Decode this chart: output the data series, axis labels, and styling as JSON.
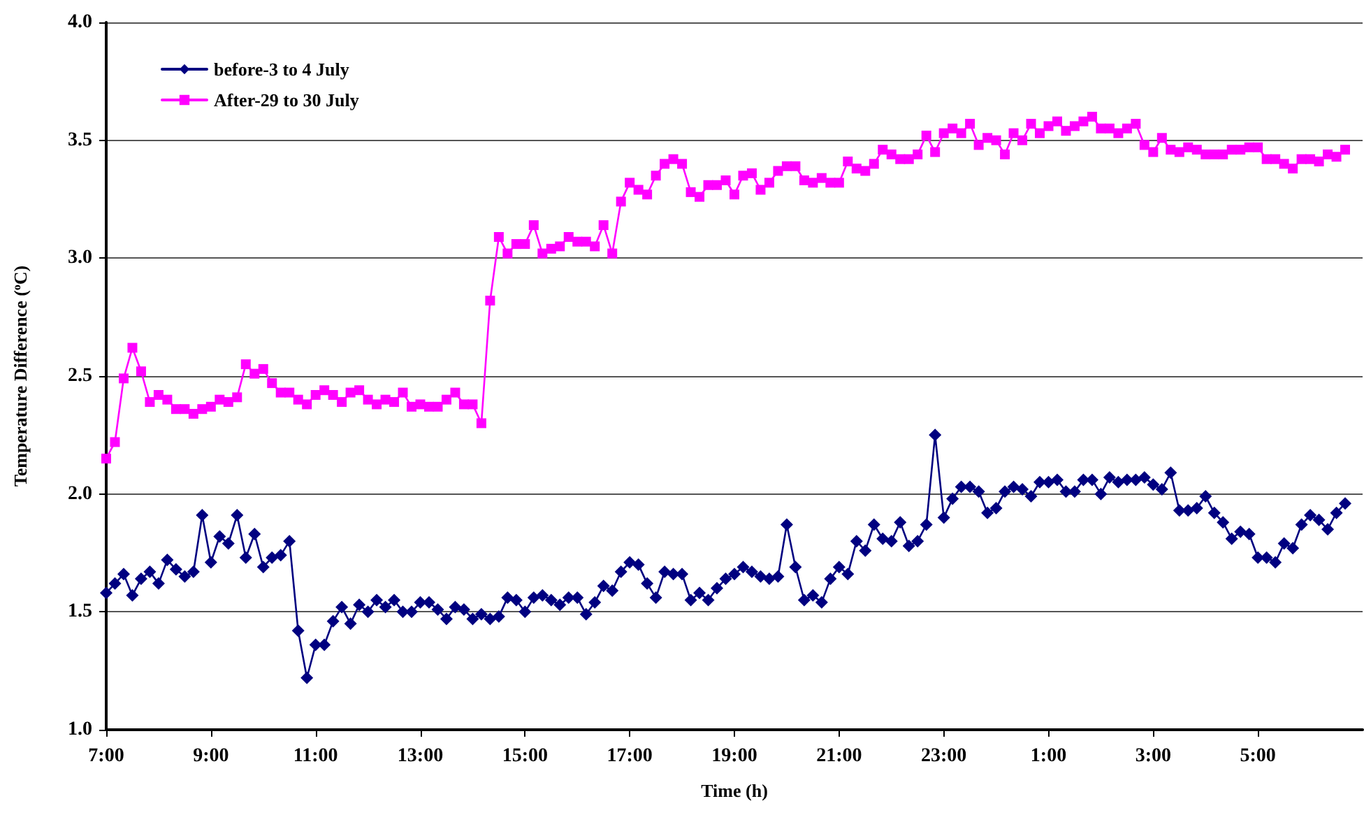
{
  "chart_data": {
    "type": "line",
    "xlabel": "Time (h)",
    "ylabel": "Temperature Difference ($^{o}$C)",
    "x": [
      "--07-03T07:00",
      "--07-03T07:10",
      "--07-03T07:20",
      "--07-03T07:30",
      "--07-03T07:40",
      "--07-03T07:50",
      "--07-03T08:00",
      "--07-03T08:10",
      "--07-03T08:20",
      "--07-03T08:30",
      "--07-03T08:40",
      "--07-03T08:50",
      "--07-03T09:00",
      "--07-03T09:10",
      "--07-03T09:20",
      "--07-03T09:30",
      "--07-03T09:40",
      "--07-03T09:50",
      "--07-03T10:00",
      "--07-03T10:10",
      "--07-03T10:20",
      "--07-03T10:30",
      "--07-03T10:40",
      "--07-03T10:50",
      "--07-03T11:00",
      "--07-03T11:10",
      "--07-03T11:20",
      "--07-03T11:30",
      "--07-03T11:40",
      "--07-03T11:50",
      "--07-03T12:00",
      "--07-03T12:10",
      "--07-03T12:20",
      "--07-03T12:30",
      "--07-03T12:40",
      "--07-03T12:50",
      "--07-03T13:00",
      "--07-03T13:10",
      "--07-03T13:20",
      "--07-03T13:30",
      "--07-03T13:40",
      "--07-03T13:50",
      "--07-03T14:00",
      "--07-03T14:10",
      "--07-03T14:20",
      "--07-03T14:30",
      "--07-03T14:40",
      "--07-03T14:50",
      "--07-03T15:00",
      "--07-03T15:10",
      "--07-03T15:20",
      "--07-03T15:30",
      "--07-03T15:40",
      "--07-03T15:50",
      "--07-03T16:00",
      "--07-03T16:10",
      "--07-03T16:20",
      "--07-03T16:30",
      "--07-03T16:40",
      "--07-03T16:50",
      "--07-03T17:00",
      "--07-03T17:10",
      "--07-03T17:20",
      "--07-03T17:30",
      "--07-03T17:40",
      "--07-03T17:50",
      "--07-03T18:00",
      "--07-03T18:10",
      "--07-03T18:20",
      "--07-03T18:30",
      "--07-03T18:40",
      "--07-03T18:50",
      "--07-03T19:00",
      "--07-03T19:10",
      "--07-03T19:20",
      "--07-03T19:30",
      "--07-03T19:40",
      "--07-03T19:50",
      "--07-03T20:00",
      "--07-03T20:10",
      "--07-03T20:20",
      "--07-03T20:30",
      "--07-03T20:40",
      "--07-03T20:50",
      "--07-03T21:00",
      "--07-03T21:10",
      "--07-03T21:20",
      "--07-03T21:30",
      "--07-03T21:40",
      "--07-03T21:50",
      "--07-03T22:00",
      "--07-03T22:10",
      "--07-03T22:20",
      "--07-03T22:30",
      "--07-03T22:40",
      "--07-03T22:50",
      "--07-03T23:00",
      "--07-03T23:10",
      "--07-03T23:20",
      "--07-03T23:30",
      "--07-03T23:40",
      "--07-03T23:50",
      "--07-04T00:00",
      "--07-04T00:10",
      "--07-04T00:20",
      "--07-04T00:30",
      "--07-04T00:40",
      "--07-04T00:50",
      "--07-04T01:00",
      "--07-04T01:10",
      "--07-04T01:20",
      "--07-04T01:30",
      "--07-04T01:40",
      "--07-04T01:50",
      "--07-04T02:00",
      "--07-04T02:10",
      "--07-04T02:20",
      "--07-04T02:30",
      "--07-04T02:40",
      "--07-04T02:50",
      "--07-04T03:00",
      "--07-04T03:10",
      "--07-04T03:20",
      "--07-04T03:30",
      "--07-04T03:40",
      "--07-04T03:50",
      "--07-04T04:00",
      "--07-04T04:10",
      "--07-04T04:20",
      "--07-04T04:30",
      "--07-04T04:40",
      "--07-04T04:50",
      "--07-04T05:00",
      "--07-04T05:10",
      "--07-04T05:20",
      "--07-04T05:30",
      "--07-04T05:40",
      "--07-04T05:50",
      "--07-04T06:00",
      "--07-04T06:10",
      "--07-04T06:20",
      "--07-04T06:30",
      "--07-04T06:40"
    ],
    "series": [
      {
        "name": "before-3 to 4 July",
        "color": "#000080",
        "marker": "diamond",
        "values": [
          1.58,
          1.62,
          1.66,
          1.57,
          1.64,
          1.67,
          1.62,
          1.72,
          1.68,
          1.65,
          1.67,
          1.91,
          1.71,
          1.82,
          1.79,
          1.91,
          1.73,
          1.83,
          1.69,
          1.73,
          1.74,
          1.8,
          1.42,
          1.22,
          1.36,
          1.36,
          1.46,
          1.52,
          1.45,
          1.53,
          1.5,
          1.55,
          1.52,
          1.55,
          1.5,
          1.5,
          1.54,
          1.54,
          1.51,
          1.47,
          1.52,
          1.51,
          1.47,
          1.49,
          1.47,
          1.48,
          1.56,
          1.55,
          1.5,
          1.56,
          1.57,
          1.55,
          1.53,
          1.56,
          1.56,
          1.49,
          1.54,
          1.61,
          1.59,
          1.67,
          1.71,
          1.7,
          1.62,
          1.56,
          1.67,
          1.66,
          1.66,
          1.55,
          1.58,
          1.55,
          1.6,
          1.64,
          1.66,
          1.69,
          1.67,
          1.65,
          1.64,
          1.65,
          1.87,
          1.69,
          1.55,
          1.57,
          1.54,
          1.64,
          1.69,
          1.66,
          1.8,
          1.76,
          1.87,
          1.81,
          1.8,
          1.88,
          1.78,
          1.8,
          1.87,
          2.25,
          1.9,
          1.98,
          2.03,
          2.03,
          2.01,
          1.92,
          1.94,
          2.01,
          2.03,
          2.02,
          1.99,
          2.05,
          2.05,
          2.06,
          2.01,
          2.01,
          2.06,
          2.06,
          2.0,
          2.07,
          2.05,
          2.06,
          2.06,
          2.07,
          2.04,
          2.02,
          2.09,
          1.93,
          1.93,
          1.94,
          1.99,
          1.92,
          1.88,
          1.81,
          1.84,
          1.83,
          1.73,
          1.73,
          1.71,
          1.79,
          1.77,
          1.87,
          1.91,
          1.89,
          1.85,
          1.92,
          1.96
        ]
      },
      {
        "name": "After-29 to 30 July",
        "color": "#ff00ff",
        "marker": "square",
        "values": [
          2.15,
          2.22,
          2.49,
          2.62,
          2.52,
          2.39,
          2.42,
          2.4,
          2.36,
          2.36,
          2.34,
          2.36,
          2.37,
          2.4,
          2.39,
          2.41,
          2.55,
          2.51,
          2.53,
          2.47,
          2.43,
          2.43,
          2.4,
          2.38,
          2.42,
          2.44,
          2.42,
          2.39,
          2.43,
          2.44,
          2.4,
          2.38,
          2.4,
          2.39,
          2.43,
          2.37,
          2.38,
          2.37,
          2.37,
          2.4,
          2.43,
          2.38,
          2.38,
          2.3,
          2.82,
          3.09,
          3.02,
          3.06,
          3.06,
          3.14,
          3.02,
          3.04,
          3.05,
          3.09,
          3.07,
          3.07,
          3.05,
          3.14,
          3.02,
          3.24,
          3.32,
          3.29,
          3.27,
          3.35,
          3.4,
          3.42,
          3.4,
          3.28,
          3.26,
          3.31,
          3.31,
          3.33,
          3.27,
          3.35,
          3.36,
          3.29,
          3.32,
          3.37,
          3.39,
          3.39,
          3.33,
          3.32,
          3.34,
          3.32,
          3.32,
          3.41,
          3.38,
          3.37,
          3.4,
          3.46,
          3.44,
          3.42,
          3.42,
          3.44,
          3.52,
          3.45,
          3.53,
          3.55,
          3.53,
          3.57,
          3.48,
          3.51,
          3.5,
          3.44,
          3.53,
          3.5,
          3.57,
          3.53,
          3.56,
          3.58,
          3.54,
          3.56,
          3.58,
          3.6,
          3.55,
          3.55,
          3.53,
          3.55,
          3.57,
          3.48,
          3.45,
          3.51,
          3.46,
          3.45,
          3.47,
          3.46,
          3.44,
          3.44,
          3.44,
          3.46,
          3.46,
          3.47,
          3.47,
          3.42,
          3.42,
          3.4,
          3.38,
          3.42,
          3.42,
          3.41,
          3.44,
          3.43,
          3.46
        ]
      }
    ],
    "xlim": [
      "--07-03T07:00",
      "--07-04T07:00"
    ],
    "xticks": [
      {
        "value": "--07-03T07:00",
        "label": "7:00"
      },
      {
        "value": "--07-03T09:00",
        "label": "9:00"
      },
      {
        "value": "--07-03T11:00",
        "label": "11:00"
      },
      {
        "value": "--07-03T13:00",
        "label": "13:00"
      },
      {
        "value": "--07-03T15:00",
        "label": "15:00"
      },
      {
        "value": "--07-03T17:00",
        "label": "17:00"
      },
      {
        "value": "--07-03T19:00",
        "label": "19:00"
      },
      {
        "value": "--07-03T21:00",
        "label": "21:00"
      },
      {
        "value": "--07-03T23:00",
        "label": "23:00"
      },
      {
        "value": "--07-04T01:00",
        "label": "1:00"
      },
      {
        "value": "--07-04T03:00",
        "label": "3:00"
      },
      {
        "value": "--07-04T05:00",
        "label": "5:00"
      }
    ],
    "ylim": [
      1,
      4
    ],
    "yticks": [
      {
        "value": 1,
        "label": "1.0"
      },
      {
        "value": 1.5,
        "label": "1.5"
      },
      {
        "value": 2,
        "label": "2.0"
      },
      {
        "value": 2.5,
        "label": "2.5"
      },
      {
        "value": 3,
        "label": "3.0"
      },
      {
        "value": 3.5,
        "label": "3.5"
      },
      {
        "value": 4,
        "label": "4.0"
      }
    ],
    "grid": "y",
    "legend": "top left",
    "line_style": "solid"
  }
}
